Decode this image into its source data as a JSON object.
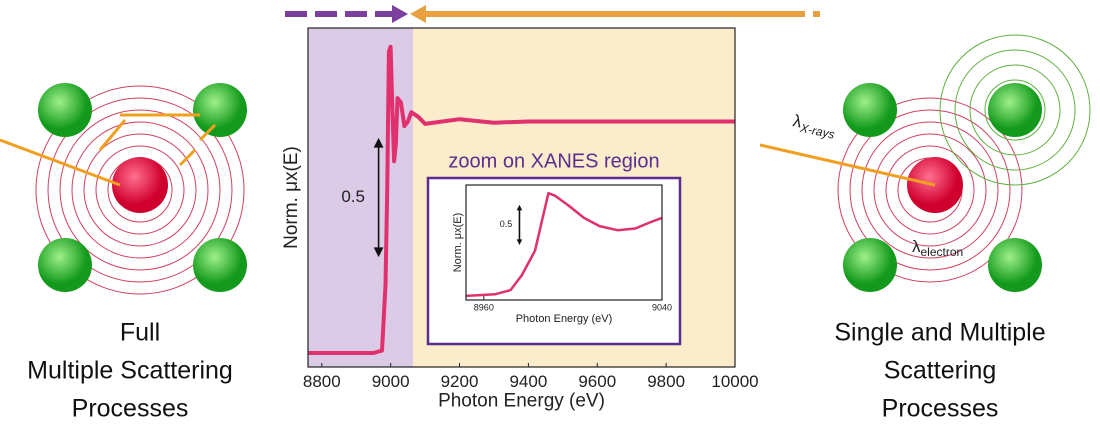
{
  "chart_data": [
    {
      "type": "line",
      "x_label": "Photon Energy (eV)",
      "y_label": "Norm. μx(E)",
      "xlim": [
        8760,
        10000
      ],
      "xticks": [
        8800,
        9000,
        9200,
        9400,
        9600,
        9800,
        10000
      ],
      "ylim": [
        -0.05,
        1.4
      ],
      "regions": [
        {
          "from": 8760,
          "to": 9065,
          "color": "#dccbe6"
        },
        {
          "from": 9065,
          "to": 10000,
          "color": "#fbeccb"
        }
      ],
      "scale_bar": {
        "label": "0.5",
        "x": 8965,
        "from": 0.42,
        "to": 0.93
      },
      "series": [
        {
          "color": "#e0306e",
          "x": [
            8760,
            8950,
            8975,
            8985,
            8990,
            8995,
            9000,
            9005,
            9010,
            9015,
            9020,
            9030,
            9040,
            9050,
            9060,
            9080,
            9100,
            9150,
            9200,
            9300,
            9400,
            9600,
            10000
          ],
          "values": [
            0.01,
            0.01,
            0.02,
            0.3,
            0.7,
            1.3,
            1.32,
            1.05,
            0.83,
            0.9,
            1.1,
            1.08,
            0.98,
            1.0,
            1.04,
            1.02,
            0.99,
            1.0,
            1.01,
            0.995,
            1.0,
            1.0,
            1.0
          ]
        }
      ]
    },
    {
      "type": "line",
      "title": "zoom on XANES region",
      "x_label": "Photon Energy (eV)",
      "y_label": "Norm. μx(E)",
      "xlim": [
        8952,
        9040
      ],
      "xticks": [
        8960,
        9040
      ],
      "ylim": [
        0,
        1.4
      ],
      "scale_bar": {
        "label": "0.5",
        "x": 8976,
        "from": 0.67,
        "to": 1.16
      },
      "series": [
        {
          "color": "#e0306e",
          "x": [
            8952,
            8965,
            8972,
            8977,
            8980,
            8983,
            8986,
            8989,
            8992,
            8998,
            9005,
            9012,
            9020,
            9028,
            9035,
            9040
          ],
          "values": [
            0.05,
            0.07,
            0.12,
            0.3,
            0.45,
            0.6,
            0.95,
            1.3,
            1.27,
            1.15,
            1.0,
            0.9,
            0.85,
            0.87,
            0.95,
            1.0
          ]
        }
      ]
    }
  ],
  "left_caption": [
    "Full",
    "Multiple Scattering",
    "Processes"
  ],
  "right_caption": [
    "Single and Multiple",
    "Scattering",
    "Processes"
  ],
  "lambda_xrays": {
    "symbol": "λ",
    "sub": "X-rays"
  },
  "lambda_electron": {
    "symbol": "λ",
    "sub": "electron"
  }
}
